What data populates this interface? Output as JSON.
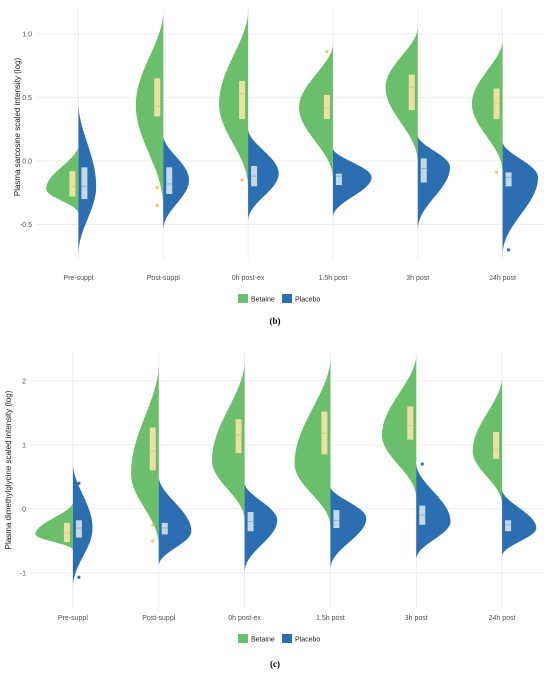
{
  "colors": {
    "betaine": "#6cbf6a",
    "placebo": "#2b6fb0",
    "grid": "#ebebeb",
    "box_betaine": "#fbe3a9",
    "box_placebo": "#d5e3ec"
  },
  "chart_data": [
    {
      "type": "violin",
      "panel_label": "(b)",
      "ylabel": "Plasma sarcosine scaled intensity (log)",
      "ylim": [
        -0.78,
        1.22
      ],
      "yticks": [
        -0.5,
        0.0,
        0.5,
        1.0
      ],
      "ytick_labels": [
        "-0.5",
        "0.0",
        "0.5",
        "1.0"
      ],
      "categories": [
        "Pre-suppl",
        "Post-suppl",
        "0h post-ex",
        "1.5h post",
        "3h post",
        "24h post"
      ],
      "legend": [
        "Betaine",
        "Placebo"
      ],
      "series": [
        {
          "name": "Betaine",
          "violins": [
            {
              "min": -0.42,
              "max": 0.12,
              "mode": -0.22,
              "width": 1.0
            },
            {
              "min": -0.38,
              "max": 1.17,
              "mode": 0.44,
              "width": 0.85
            },
            {
              "min": -0.22,
              "max": 1.18,
              "mode": 0.45,
              "width": 0.9
            },
            {
              "min": -0.15,
              "max": 0.92,
              "mode": 0.42,
              "width": 1.05
            },
            {
              "min": -0.02,
              "max": 1.05,
              "mode": 0.58,
              "width": 1.0
            },
            {
              "min": -0.1,
              "max": 0.95,
              "mode": 0.45,
              "width": 0.95
            }
          ],
          "boxes": [
            {
              "q1": -0.28,
              "median": -0.2,
              "q3": -0.08
            },
            {
              "q1": 0.35,
              "median": 0.43,
              "q3": 0.65
            },
            {
              "q1": 0.33,
              "median": 0.53,
              "q3": 0.63
            },
            {
              "q1": 0.33,
              "median": 0.42,
              "q3": 0.52
            },
            {
              "q1": 0.4,
              "median": 0.58,
              "q3": 0.68
            },
            {
              "q1": 0.33,
              "median": 0.45,
              "q3": 0.57
            }
          ],
          "outliers": [
            [],
            [
              -0.21,
              -0.35
            ],
            [
              -0.15
            ],
            [
              0.86
            ],
            [],
            [
              -0.09
            ]
          ]
        },
        {
          "name": "Placebo",
          "violins": [
            {
              "min": -0.75,
              "max": 0.45,
              "mode": -0.2,
              "width": 0.55
            },
            {
              "min": -0.55,
              "max": 0.2,
              "mode": -0.15,
              "width": 0.8
            },
            {
              "min": -0.48,
              "max": 0.25,
              "mode": -0.1,
              "width": 0.95
            },
            {
              "min": -0.45,
              "max": 0.1,
              "mode": -0.13,
              "width": 1.2
            },
            {
              "min": -0.55,
              "max": 0.2,
              "mode": -0.05,
              "width": 1.0
            },
            {
              "min": -0.75,
              "max": 0.15,
              "mode": -0.13,
              "width": 1.1
            }
          ],
          "boxes": [
            {
              "q1": -0.3,
              "median": -0.2,
              "q3": -0.05
            },
            {
              "q1": -0.26,
              "median": -0.18,
              "q3": -0.05
            },
            {
              "q1": -0.2,
              "median": -0.12,
              "q3": -0.04
            },
            {
              "q1": -0.19,
              "median": -0.12,
              "q3": -0.1
            },
            {
              "q1": -0.17,
              "median": -0.06,
              "q3": 0.02
            },
            {
              "q1": -0.2,
              "median": -0.13,
              "q3": -0.09
            }
          ],
          "outliers": [
            [],
            [],
            [],
            [],
            [],
            [
              -0.7
            ]
          ]
        }
      ]
    },
    {
      "type": "violin",
      "panel_label": "(c)",
      "ylabel": "Plasma dimethylglycine scaled intensity (log)",
      "ylim": [
        -1.55,
        2.45
      ],
      "yticks": [
        -1,
        0,
        1,
        2
      ],
      "ytick_labels": [
        "-1",
        "0",
        "1",
        "2"
      ],
      "categories": [
        "Pre-suppl",
        "Post-suppl",
        "0h post-ex",
        "1.5h post",
        "3h post",
        "24h post"
      ],
      "legend": [
        "Betaine",
        "Placebo"
      ],
      "series": [
        {
          "name": "Betaine",
          "violins": [
            {
              "min": -0.65,
              "max": 0.1,
              "mode": -0.4,
              "width": 1.15
            },
            {
              "min": -0.6,
              "max": 2.25,
              "mode": 0.55,
              "width": 0.85
            },
            {
              "min": -0.2,
              "max": 2.3,
              "mode": 0.75,
              "width": 1.0
            },
            {
              "min": -0.3,
              "max": 2.35,
              "mode": 0.7,
              "width": 1.1
            },
            {
              "min": 0.15,
              "max": 2.4,
              "mode": 1.15,
              "width": 1.05
            },
            {
              "min": 0.05,
              "max": 2.05,
              "mode": 0.9,
              "width": 0.9
            }
          ],
          "boxes": [
            {
              "q1": -0.52,
              "median": -0.38,
              "q3": -0.22
            },
            {
              "q1": 0.6,
              "median": 0.9,
              "q3": 1.27
            },
            {
              "q1": 0.87,
              "median": 1.15,
              "q3": 1.4
            },
            {
              "q1": 0.85,
              "median": 1.18,
              "q3": 1.52
            },
            {
              "q1": 1.08,
              "median": 1.3,
              "q3": 1.6
            },
            {
              "q1": 0.78,
              "median": 0.93,
              "q3": 1.2
            }
          ],
          "outliers": [
            [],
            [
              -0.25,
              -0.5
            ],
            [],
            [],
            [],
            []
          ]
        },
        {
          "name": "Placebo",
          "violins": [
            {
              "min": -1.25,
              "max": 0.7,
              "mode": -0.3,
              "width": 0.6
            },
            {
              "min": -0.9,
              "max": 0.5,
              "mode": -0.35,
              "width": 1.0
            },
            {
              "min": -1.0,
              "max": 0.4,
              "mode": -0.18,
              "width": 1.0
            },
            {
              "min": -0.95,
              "max": 0.35,
              "mode": -0.15,
              "width": 1.1
            },
            {
              "min": -0.8,
              "max": 0.7,
              "mode": -0.2,
              "width": 1.05
            },
            {
              "min": -0.75,
              "max": 0.3,
              "mode": -0.3,
              "width": 1.05
            }
          ],
          "boxes": [
            {
              "q1": -0.45,
              "median": -0.3,
              "q3": -0.18
            },
            {
              "q1": -0.4,
              "median": -0.3,
              "q3": -0.22
            },
            {
              "q1": -0.35,
              "median": -0.2,
              "q3": -0.05
            },
            {
              "q1": -0.3,
              "median": -0.18,
              "q3": -0.02
            },
            {
              "q1": -0.25,
              "median": -0.1,
              "q3": 0.05
            },
            {
              "q1": -0.35,
              "median": -0.25,
              "q3": -0.18
            }
          ],
          "outliers": [
            [
              0.4,
              -1.07
            ],
            [],
            [],
            [],
            [
              0.7
            ],
            []
          ]
        }
      ]
    }
  ]
}
